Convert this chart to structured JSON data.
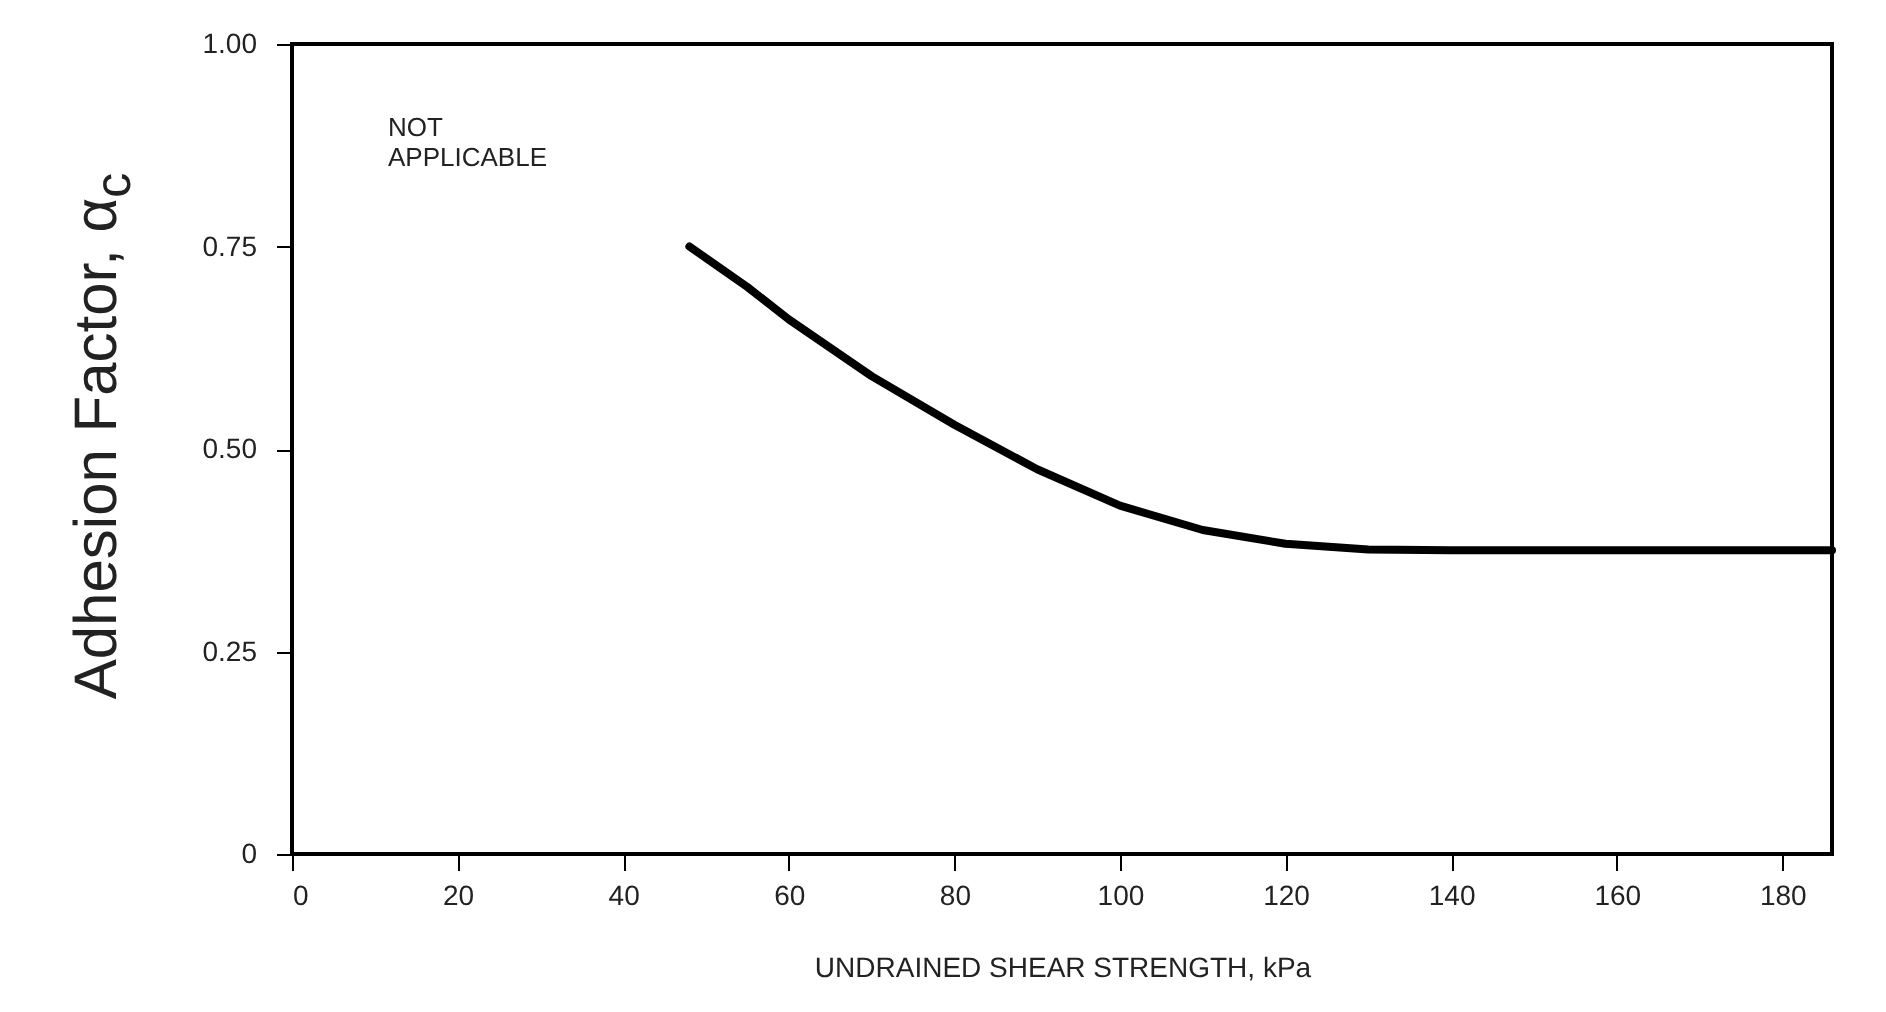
{
  "chart_data": {
    "type": "line",
    "xlabel": "UNDRAINED SHEAR STRENGTH, kPa",
    "ylabel": "Adhesion Factor, α$_{c}$",
    "annotations": [
      "NOT APPLICABLE"
    ],
    "series": [
      {
        "color": "#000000",
        "x": [
          48,
          55,
          60,
          70,
          80,
          90,
          100,
          110,
          120,
          130,
          140,
          160,
          186
        ],
        "values": [
          0.75,
          0.7,
          0.66,
          0.59,
          0.53,
          0.475,
          0.43,
          0.4,
          0.383,
          0.376,
          0.375,
          0.375,
          0.375
        ]
      }
    ],
    "xlim": [
      0,
      186
    ],
    "xticks": [
      0,
      20,
      40,
      60,
      80,
      100,
      120,
      140,
      160,
      180
    ],
    "ylim": [
      0,
      1
    ],
    "yticks": [
      0,
      0.25,
      {
        "value": 0.5,
        "label": "0.50"
      },
      0.75,
      {
        "value": 1,
        "label": "1.00"
      }
    ],
    "grid": false,
    "marker": "none",
    "line_style": "solid"
  }
}
